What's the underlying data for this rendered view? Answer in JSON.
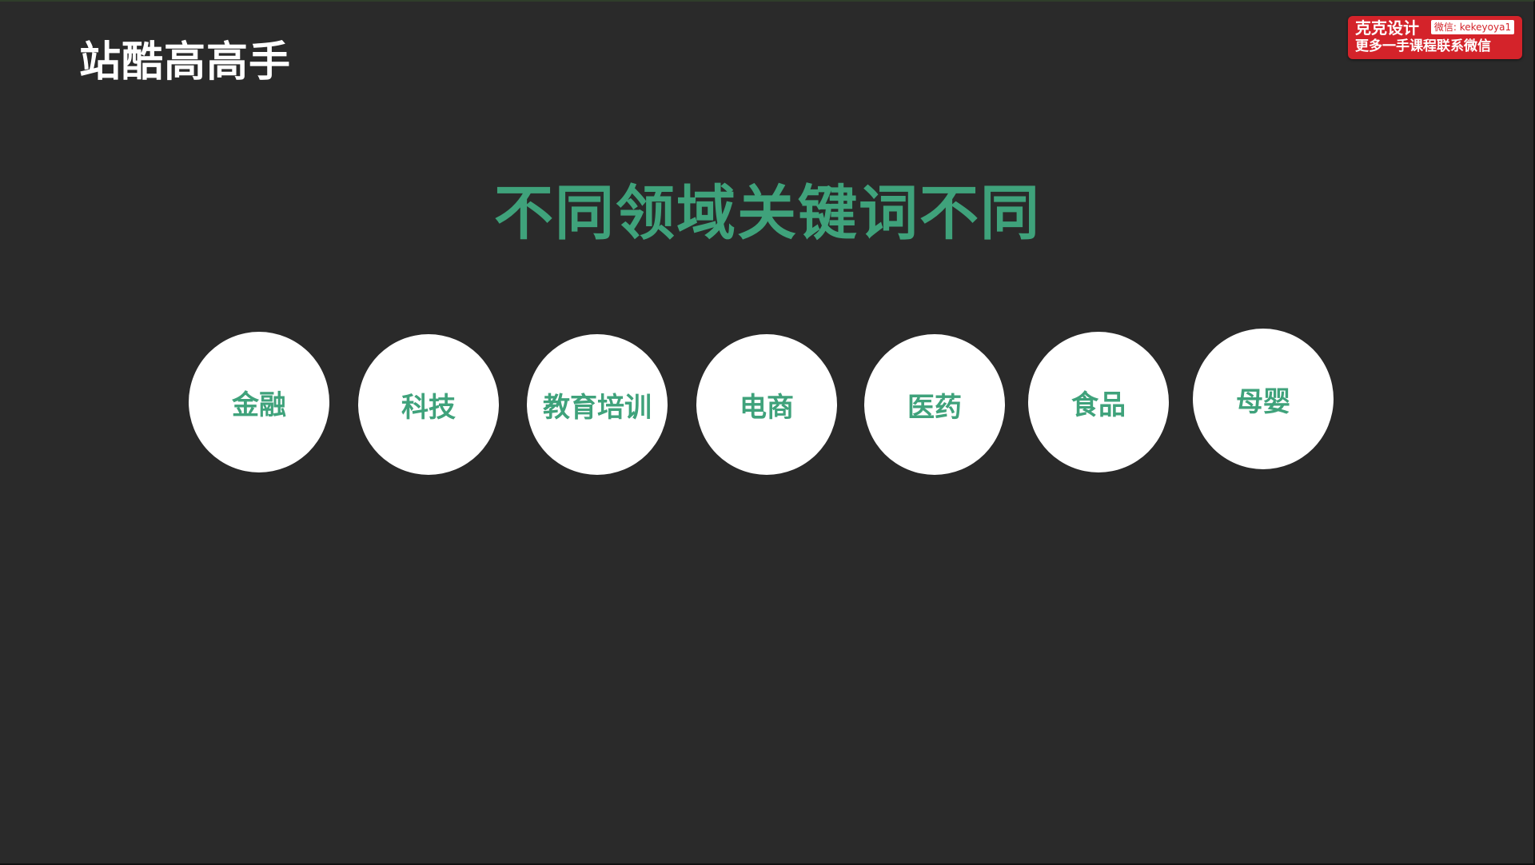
{
  "brand": {
    "logo_text": "站酷高高手"
  },
  "slide": {
    "headline": "不同领域关键词不同",
    "domains": [
      {
        "label": "金融"
      },
      {
        "label": "科技"
      },
      {
        "label": "教育培训"
      },
      {
        "label": "电商"
      },
      {
        "label": "医药"
      },
      {
        "label": "食品"
      },
      {
        "label": "母婴"
      }
    ]
  },
  "watermark": {
    "title": "克克设计",
    "wechat": "微信: kekeyoya1",
    "subtitle": "更多一手课程联系微信"
  },
  "colors": {
    "background": "#2a2a2a",
    "accent_green": "#3fa27b",
    "circle_fill": "#ffffff",
    "badge_red": "#d4232a"
  }
}
